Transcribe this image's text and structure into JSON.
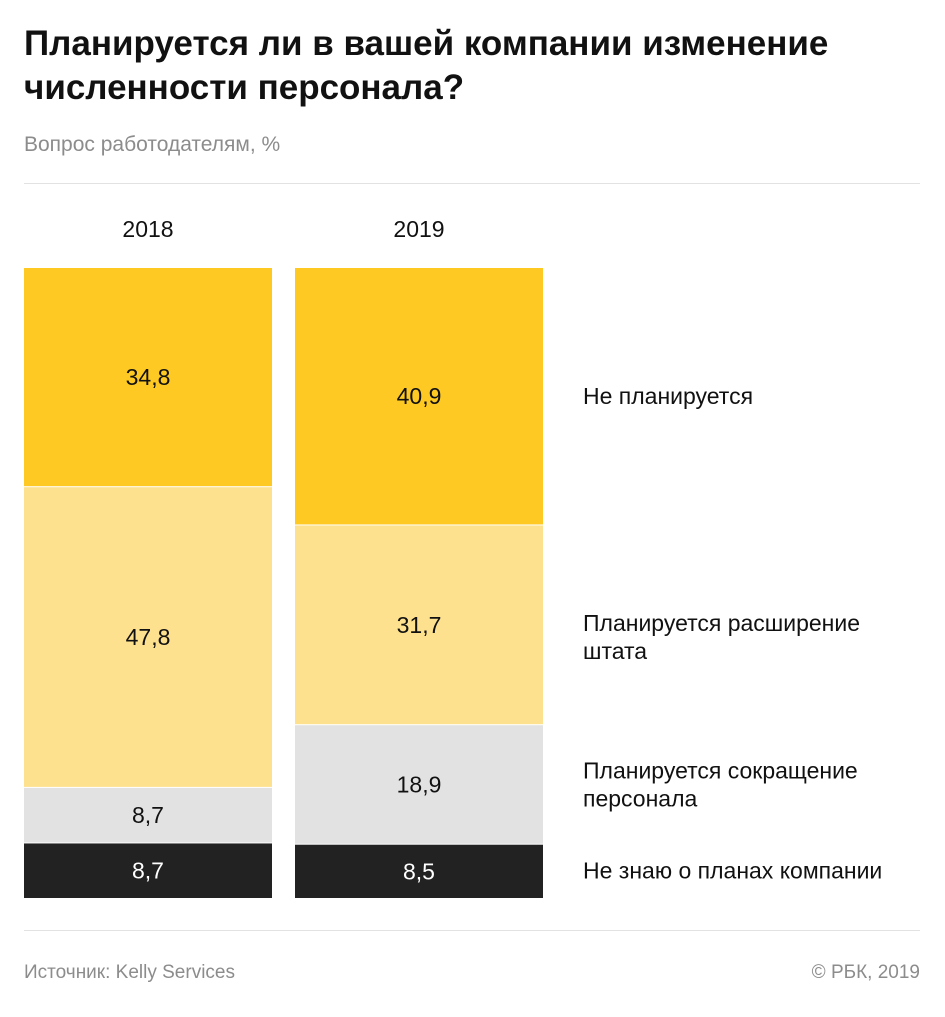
{
  "header": {
    "title": "Планируется ли в вашей компании изменение численности персонала?",
    "subtitle": "Вопрос работодателям, %"
  },
  "footer": {
    "source": "Источник: Kelly Services",
    "copyright": "© РБК, 2019"
  },
  "chart_data": {
    "type": "bar",
    "stacked": true,
    "title": "Планируется ли в вашей компании изменение численности персонала?",
    "subtitle": "Вопрос работодателям, %",
    "categories": [
      "2018",
      "2019"
    ],
    "series": [
      {
        "name": "Не планируется",
        "values": [
          34.8,
          40.9
        ],
        "labels": [
          "34,8",
          "40,9"
        ],
        "color": "#fec923",
        "text_color": "#111111"
      },
      {
        "name": "Планируется расширение штата",
        "values": [
          47.8,
          31.7
        ],
        "labels": [
          "47,8",
          "31,7"
        ],
        "color": "#fee18f",
        "text_color": "#111111"
      },
      {
        "name": "Планируется сокращение персонала",
        "values": [
          8.7,
          18.9
        ],
        "labels": [
          "8,7",
          "18,9"
        ],
        "color": "#e2e2e2",
        "text_color": "#111111"
      },
      {
        "name": "Не знаю о планах компании",
        "values": [
          8.7,
          8.5
        ],
        "labels": [
          "8,7",
          "8,5"
        ],
        "color": "#222222",
        "text_color": "#ffffff"
      }
    ],
    "legend": "right",
    "grid": false
  }
}
